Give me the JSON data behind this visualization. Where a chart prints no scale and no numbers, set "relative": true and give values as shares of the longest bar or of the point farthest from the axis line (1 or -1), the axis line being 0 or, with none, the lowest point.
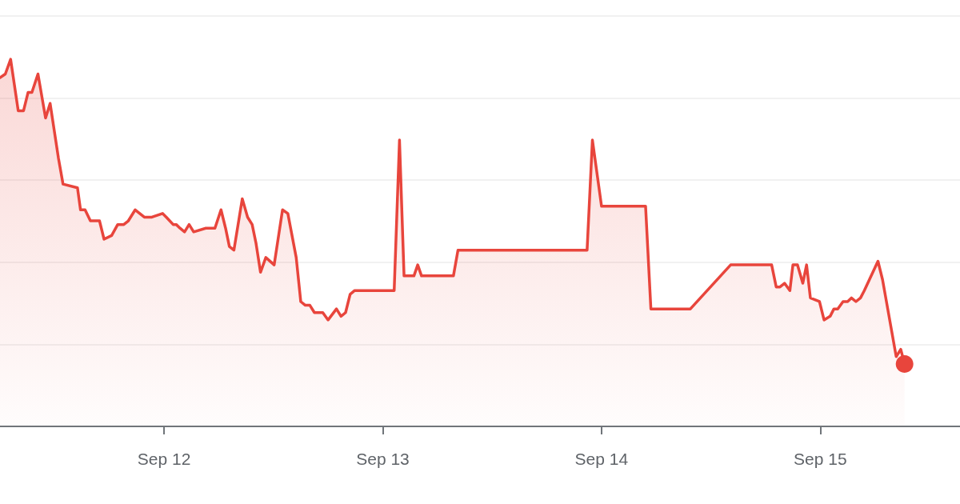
{
  "chart_data": {
    "type": "area",
    "relative": true,
    "grid": "y",
    "marker": "none",
    "xlim": [
      "--09-11T06:00",
      "--09-15T15:20"
    ],
    "xticks": [
      {
        "value": "--09-12",
        "label": "Sep 12"
      },
      {
        "value": "--09-13",
        "label": "Sep 13"
      },
      {
        "value": "--09-14",
        "label": "Sep 14"
      },
      {
        "value": "--09-15",
        "label": "Sep 15"
      }
    ],
    "x": [
      "--09-11T06:00",
      "--09-11T06:35",
      "--09-11T07:10",
      "--09-11T08:00",
      "--09-11T08:35",
      "--09-11T09:05",
      "--09-11T09:30",
      "--09-11T10:10",
      "--09-11T11:00",
      "--09-11T11:30",
      "--09-11T12:25",
      "--09-11T12:55",
      "--09-11T14:30",
      "--09-11T14:50",
      "--09-11T15:20",
      "--09-11T15:55",
      "--09-11T16:55",
      "--09-11T17:25",
      "--09-11T18:15",
      "--09-11T18:55",
      "--09-11T19:35",
      "--09-11T20:05",
      "--09-11T20:50",
      "--09-11T21:50",
      "--09-11T22:40",
      "--09-11T23:50",
      "--09-12T00:15",
      "--09-12T01:00",
      "--09-12T01:20",
      "--09-12T01:45",
      "--09-12T02:15",
      "--09-12T02:45",
      "--09-12T03:15",
      "--09-12T04:35",
      "--09-12T05:10",
      "--09-12T05:35",
      "--09-12T06:15",
      "--09-12T06:45",
      "--09-12T07:10",
      "--09-12T07:40",
      "--09-12T08:35",
      "--09-12T09:10",
      "--09-12T09:40",
      "--09-12T10:05",
      "--09-12T10:35",
      "--09-12T11:10",
      "--09-12T12:05",
      "--09-12T13:00",
      "--09-12T13:35",
      "--09-12T14:30",
      "--09-12T15:00",
      "--09-12T15:30",
      "--09-12T16:00",
      "--09-12T16:30",
      "--09-12T17:25",
      "--09-12T18:00",
      "--09-12T18:55",
      "--09-12T19:25",
      "--09-12T19:55",
      "--09-12T20:25",
      "--09-12T20:55",
      "--09-13T01:15",
      "--09-13T01:50",
      "--09-13T02:20",
      "--09-13T03:25",
      "--09-13T03:50",
      "--09-13T04:15",
      "--09-13T07:45",
      "--09-13T08:15",
      "--09-13T22:25",
      "--09-13T23:00",
      "--09-14T00:00",
      "--09-14T04:50",
      "--09-14T05:25",
      "--09-14T09:45",
      "--09-14T14:10",
      "--09-14T18:40",
      "--09-14T19:10",
      "--09-14T19:35",
      "--09-14T20:05",
      "--09-14T20:40",
      "--09-14T21:00",
      "--09-14T21:30",
      "--09-14T22:05",
      "--09-14T22:30",
      "--09-14T22:55",
      "--09-14T23:55",
      "--09-15T00:25",
      "--09-15T01:05",
      "--09-15T01:30",
      "--09-15T01:55",
      "--09-15T02:30",
      "--09-15T03:00",
      "--09-15T03:25",
      "--09-15T03:55",
      "--09-15T04:25",
      "--09-15T04:50",
      "--09-15T06:20",
      "--09-15T06:50",
      "--09-15T08:20",
      "--09-15T08:50",
      "--09-15T09:15"
    ],
    "series": [
      {
        "color": "#e8453c",
        "values": [
          0.95,
          0.96,
          1.0,
          0.86,
          0.86,
          0.91,
          0.91,
          0.96,
          0.84,
          0.88,
          0.73,
          0.66,
          0.65,
          0.59,
          0.59,
          0.56,
          0.56,
          0.51,
          0.52,
          0.55,
          0.55,
          0.56,
          0.59,
          0.57,
          0.57,
          0.58,
          0.57,
          0.55,
          0.55,
          0.54,
          0.53,
          0.55,
          0.53,
          0.54,
          0.54,
          0.54,
          0.59,
          0.54,
          0.49,
          0.48,
          0.62,
          0.57,
          0.55,
          0.5,
          0.42,
          0.46,
          0.44,
          0.59,
          0.58,
          0.46,
          0.34,
          0.33,
          0.33,
          0.31,
          0.31,
          0.29,
          0.32,
          0.3,
          0.31,
          0.36,
          0.37,
          0.37,
          0.78,
          0.41,
          0.41,
          0.44,
          0.41,
          0.41,
          0.48,
          0.48,
          0.78,
          0.6,
          0.6,
          0.32,
          0.32,
          0.44,
          0.44,
          0.38,
          0.38,
          0.39,
          0.37,
          0.44,
          0.44,
          0.39,
          0.44,
          0.35,
          0.34,
          0.29,
          0.3,
          0.32,
          0.32,
          0.34,
          0.34,
          0.35,
          0.34,
          0.35,
          0.37,
          0.45,
          0.4,
          0.19,
          0.21,
          0.17
        ]
      },
      {
        "type": "scatter",
        "marker": "circle",
        "color": "#e8453c",
        "x": [
          "--09-15T09:15"
        ],
        "values": [
          0.17
        ]
      }
    ]
  }
}
